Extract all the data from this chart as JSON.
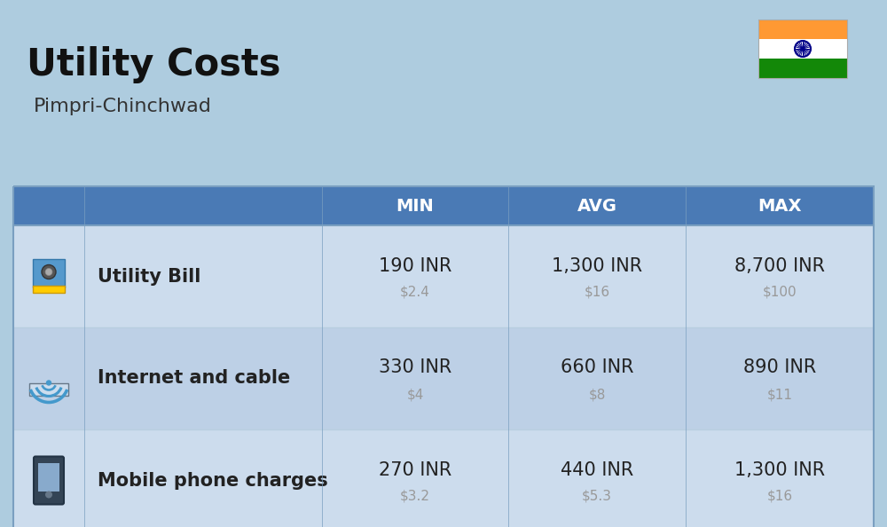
{
  "title": "Utility Costs",
  "subtitle": "Pimpri-Chinchwad",
  "bg_color": "#aeccdf",
  "header_color": "#4a7ab5",
  "header_text_color": "#ffffff",
  "row_colors": [
    "#ccdced",
    "#bdd0e6"
  ],
  "cell_text_color": "#222222",
  "sub_text_color": "#999999",
  "title_color": "#111111",
  "subtitle_color": "#333333",
  "rows": [
    {
      "label": "Utility Bill",
      "min_inr": "190 INR",
      "min_usd": "$2.4",
      "avg_inr": "1,300 INR",
      "avg_usd": "$16",
      "max_inr": "8,700 INR",
      "max_usd": "$100"
    },
    {
      "label": "Internet and cable",
      "min_inr": "330 INR",
      "min_usd": "$4",
      "avg_inr": "660 INR",
      "avg_usd": "$8",
      "max_inr": "890 INR",
      "max_usd": "$11"
    },
    {
      "label": "Mobile phone charges",
      "min_inr": "270 INR",
      "min_usd": "$3.2",
      "avg_inr": "440 INR",
      "avg_usd": "$5.3",
      "max_inr": "1,300 INR",
      "max_usd": "$16"
    }
  ]
}
